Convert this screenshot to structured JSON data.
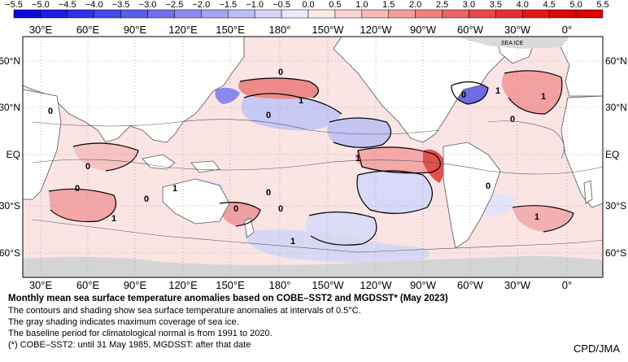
{
  "colorbar": {
    "ticks": [
      "−5.5",
      "−5.0",
      "−4.5",
      "−4.0",
      "−3.5",
      "−3.0",
      "−2.5",
      "−2.0",
      "−1.5",
      "−1.0",
      "−0.5",
      "0.0",
      "0.5",
      "1.0",
      "1.5",
      "2.0",
      "2.5",
      "3.0",
      "3.5",
      "4.0",
      "4.5",
      "5.0",
      "5.5"
    ],
    "colors": [
      "#0a0ad8",
      "#1e1ee0",
      "#3030e4",
      "#4848e8",
      "#5c5cec",
      "#7070ee",
      "#8a8af0",
      "#a4a4f3",
      "#bcbcf6",
      "#d4d4f9",
      "#eaeaff",
      "#ffeaea",
      "#fcd4d4",
      "#f8b8b8",
      "#f49c9c",
      "#f08080",
      "#ec6464",
      "#e84848",
      "#e43030",
      "#e01818",
      "#dc0808",
      "#d80000"
    ]
  },
  "map": {
    "lon_labels": [
      "30°E",
      "60°E",
      "90°E",
      "120°E",
      "150°E",
      "180°",
      "150°W",
      "120°W",
      "90°W",
      "60°W",
      "30°W",
      "0°"
    ],
    "lat_labels": [
      "60°N",
      "30°N",
      "EQ",
      "30°S",
      "60°S"
    ],
    "sea_ice_label": "SEA ICE",
    "contour_labels": [
      "0",
      "0",
      "0",
      "1",
      "1",
      "0",
      "0",
      "0",
      "1",
      "0",
      "0",
      "0",
      "1",
      "0",
      "0",
      "1",
      "1",
      "0",
      "1",
      "1"
    ],
    "colors": {
      "land": "#ffffff",
      "sea_ice": "#d4d4d4",
      "grid": "#888888",
      "contour": "#000000"
    }
  },
  "caption": {
    "title": "Monthly mean sea surface temperature anomalies based on COBE–SST2 and MGDSST* (May 2023)",
    "lines": [
      "The contours and shading show sea surface temperature anomalies at intervals of 0.5°C.",
      "The gray shading indicates maximum coverage of sea ice.",
      "The baseline period for climatological normal is from 1991 to 2020.",
      "(*) COBE–SST2: until 31 May 1985, MGDSST: after that date"
    ]
  },
  "credit": "CPD/JMA"
}
